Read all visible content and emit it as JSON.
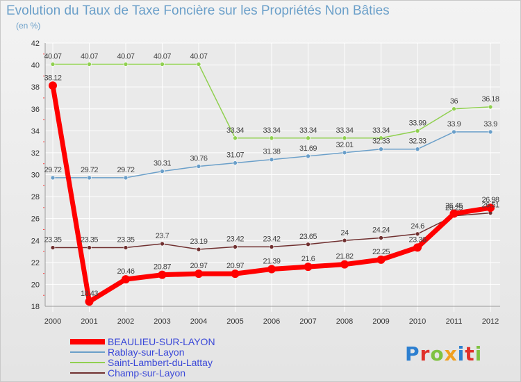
{
  "colors": {
    "title": "#6a9fc9",
    "legend_text": "#3a48d8",
    "grid": "#ffffff",
    "axis_text": "#333333"
  },
  "chart_data": {
    "type": "line",
    "title": "Evolution du Taux de Taxe Foncière sur les Propriétés Non Bâties",
    "ylabel": "(en %)",
    "xlabel": "",
    "ylim": [
      18,
      42
    ],
    "y_ticks": [
      18,
      20,
      22,
      24,
      26,
      28,
      30,
      32,
      34,
      36,
      38,
      40,
      42
    ],
    "grid": true,
    "legend_position": "bottom-left",
    "categories": [
      "2000",
      "2001",
      "2002",
      "2003",
      "2004",
      "2005",
      "2006",
      "2007",
      "2008",
      "2009",
      "2010",
      "2011",
      "2012"
    ],
    "series": [
      {
        "name": "BEAULIEU-SUR-LAYON",
        "color": "#ff0000",
        "values": [
          38.12,
          18.43,
          20.46,
          20.87,
          20.97,
          20.97,
          21.39,
          21.6,
          21.82,
          22.25,
          23.36,
          26.45,
          26.98
        ],
        "labels": [
          "38.12",
          "18.43",
          "20.46",
          "20.87",
          "20.97",
          "20.97",
          "21.39",
          "21.6",
          "21.82",
          "22.25",
          "23.36",
          "26.45",
          "26.98"
        ]
      },
      {
        "name": "Rablay-sur-Layon",
        "color": "#6a9fc9",
        "values": [
          29.72,
          29.72,
          29.72,
          30.31,
          30.76,
          31.07,
          31.38,
          31.69,
          32.01,
          32.33,
          32.33,
          33.9,
          33.9
        ],
        "labels": [
          "29.72",
          "29.72",
          "29.72",
          "30.31",
          "30.76",
          "31.07",
          "31.38",
          "31.69",
          "32.01",
          "32.33",
          "32.33",
          "33.9",
          "33.9"
        ]
      },
      {
        "name": "Saint-Lambert-du-Lattay",
        "color": "#90d050",
        "values": [
          40.07,
          40.07,
          40.07,
          40.07,
          40.07,
          33.34,
          33.34,
          33.34,
          33.34,
          33.34,
          33.99,
          36,
          36.18
        ],
        "labels": [
          "40.07",
          "40.07",
          "40.07",
          "40.07",
          "40.07",
          "33.34",
          "33.34",
          "33.34",
          "33.34",
          "33.34",
          "33.99",
          "36",
          "36.18"
        ]
      },
      {
        "name": "Champ-sur-Layon",
        "color": "#703030",
        "values": [
          23.35,
          23.35,
          23.35,
          23.7,
          23.19,
          23.42,
          23.42,
          23.65,
          24,
          24.24,
          24.6,
          26.25,
          26.51
        ],
        "labels": [
          "23.35",
          "23.35",
          "23.35",
          "23.7",
          "23.19",
          "23.42",
          "23.42",
          "23.65",
          "24",
          "24.24",
          "24.6",
          "26.25",
          "26.51"
        ]
      }
    ]
  },
  "logo": {
    "letters": [
      "P",
      "r",
      "o",
      "x",
      "i",
      "t",
      "i"
    ],
    "colors": [
      "#2c7fd0",
      "#e0302a",
      "#7fc241",
      "#f0a020",
      "#2c7fd0",
      "#e0302a",
      "#7fc241"
    ]
  }
}
